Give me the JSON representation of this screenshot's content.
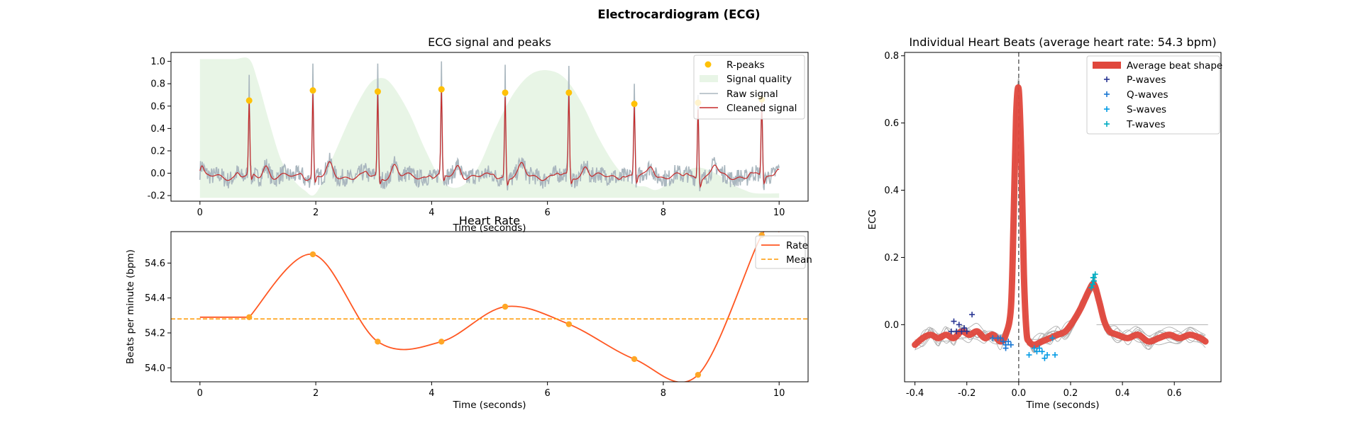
{
  "figure": {
    "title": "Electrocardiogram (ECG)"
  },
  "chart_data": [
    {
      "id": "ecg",
      "type": "line",
      "title": "ECG signal and peaks",
      "xlabel": "Time (seconds)",
      "ylabel": "",
      "xlim": [
        -0.5,
        10.5
      ],
      "ylim": [
        -0.25,
        1.08
      ],
      "xticks": [
        0,
        2,
        4,
        6,
        8,
        10
      ],
      "yticks": [
        -0.2,
        0.0,
        0.2,
        0.4,
        0.6,
        0.8,
        1.0
      ],
      "legend_position": "top-right",
      "colors": {
        "peaks": "#ffc107",
        "quality": "#e8f5e6",
        "raw": "#aab7bf",
        "cleaned": "#c62828"
      },
      "legend": [
        "R-peaks",
        "Signal quality",
        "Raw signal",
        "Cleaned signal"
      ],
      "r_peaks": {
        "x": [
          0.85,
          1.95,
          3.07,
          4.17,
          5.27,
          6.37,
          7.5,
          8.6,
          9.7
        ],
        "y": [
          0.65,
          0.74,
          0.73,
          0.75,
          0.72,
          0.72,
          0.62,
          0.63,
          0.66
        ]
      },
      "signal_quality": {
        "x": [
          0,
          0.3,
          0.6,
          0.85,
          1.0,
          1.2,
          1.4,
          1.6,
          1.8,
          2.0,
          2.3,
          2.6,
          2.9,
          3.1,
          3.3,
          3.6,
          3.9,
          4.2,
          4.5,
          4.8,
          5.1,
          5.4,
          5.7,
          6.0,
          6.3,
          6.6,
          6.9,
          7.2,
          7.5,
          7.7,
          7.85,
          8.0,
          8.3,
          8.6,
          8.9,
          9.2,
          9.4,
          9.6,
          10.0
        ],
        "y": [
          1.02,
          1.02,
          1.02,
          1.02,
          0.82,
          0.45,
          0.12,
          -0.05,
          -0.15,
          -0.18,
          0.15,
          0.5,
          0.78,
          0.85,
          0.8,
          0.55,
          0.2,
          -0.08,
          -0.12,
          0.05,
          0.4,
          0.7,
          0.88,
          0.92,
          0.85,
          0.62,
          0.3,
          0.05,
          -0.1,
          -0.12,
          -0.15,
          -0.12,
          0.0,
          0.05,
          0.0,
          -0.1,
          -0.15,
          -0.18,
          -0.18
        ]
      },
      "raw_signal": {
        "description_values": "noisy version of cleaned signal, range approx -0.22 to 1.05",
        "spike_peaks_y": [
          0.88,
          0.98,
          0.98,
          1.0,
          0.97,
          0.96,
          0.8,
          0.7,
          0.68
        ]
      }
    },
    {
      "id": "rate",
      "type": "line",
      "title": "Heart Rate",
      "xlabel": "Time (seconds)",
      "ylabel": "Beats per minute (bpm)",
      "xlim": [
        -0.5,
        10.5
      ],
      "ylim": [
        53.92,
        54.78
      ],
      "xticks": [
        0,
        2,
        4,
        6,
        8,
        10
      ],
      "yticks": [
        54.0,
        54.2,
        54.4,
        54.6
      ],
      "legend_position": "top-right",
      "colors": {
        "rate": "#ff5722",
        "mean": "#ff9800",
        "points": "#ffa726"
      },
      "legend": [
        "Rate",
        "Mean"
      ],
      "series": [
        {
          "name": "Rate",
          "x": [
            0,
            0.85,
            1.95,
            3.07,
            4.17,
            5.27,
            6.37,
            7.5,
            8.6,
            9.7,
            10.0
          ],
          "y": [
            54.29,
            54.29,
            54.65,
            54.15,
            54.15,
            54.35,
            54.25,
            54.05,
            53.96,
            54.76,
            54.78
          ]
        },
        {
          "name": "Mean",
          "value": 54.28
        }
      ],
      "points": {
        "x": [
          0.85,
          1.95,
          3.07,
          4.17,
          5.27,
          6.37,
          7.5,
          8.6,
          9.7
        ],
        "y": [
          54.29,
          54.65,
          54.15,
          54.15,
          54.35,
          54.25,
          54.05,
          53.96,
          54.76
        ]
      }
    },
    {
      "id": "beats",
      "type": "line",
      "title": "Individual Heart Beats (average heart rate: 54.3 bpm)",
      "xlabel": "Time (seconds)",
      "ylabel": "ECG",
      "xlim": [
        -0.44,
        0.78
      ],
      "ylim": [
        -0.17,
        0.81
      ],
      "xticks": [
        -0.4,
        -0.2,
        0.0,
        0.2,
        0.4,
        0.6
      ],
      "yticks": [
        0.0,
        0.2,
        0.4,
        0.6,
        0.8
      ],
      "legend_position": "top-right",
      "colors": {
        "average": "#e0473c",
        "individual": "#b0b0b0",
        "p": "#283593",
        "q": "#1976d2",
        "s": "#039be5",
        "t": "#00acc1",
        "zero_line": "#666666"
      },
      "legend": [
        "Average beat shape",
        "P-waves",
        "Q-waves",
        "S-waves",
        "T-waves"
      ],
      "average_beat": {
        "x": [
          -0.4,
          -0.37,
          -0.34,
          -0.31,
          -0.28,
          -0.25,
          -0.22,
          -0.19,
          -0.16,
          -0.13,
          -0.1,
          -0.07,
          -0.05,
          -0.03,
          -0.02,
          -0.01,
          0.0,
          0.01,
          0.02,
          0.03,
          0.04,
          0.06,
          0.09,
          0.12,
          0.15,
          0.18,
          0.21,
          0.24,
          0.27,
          0.29,
          0.31,
          0.33,
          0.35,
          0.38,
          0.42,
          0.46,
          0.5,
          0.54,
          0.58,
          0.62,
          0.66,
          0.7,
          0.72
        ],
        "y": [
          -0.06,
          -0.04,
          -0.03,
          -0.04,
          -0.03,
          -0.04,
          -0.02,
          -0.03,
          -0.02,
          -0.04,
          -0.03,
          -0.05,
          -0.03,
          0.05,
          0.3,
          0.62,
          0.7,
          0.5,
          0.15,
          -0.02,
          -0.05,
          -0.06,
          -0.05,
          -0.04,
          -0.03,
          -0.02,
          0.01,
          0.05,
          0.1,
          0.12,
          0.07,
          0.01,
          -0.02,
          -0.03,
          -0.04,
          -0.03,
          -0.05,
          -0.04,
          -0.03,
          -0.04,
          -0.03,
          -0.04,
          -0.05
        ]
      },
      "p_waves": {
        "x": [
          -0.25,
          -0.23,
          -0.21,
          -0.24,
          -0.2,
          -0.18,
          -0.22,
          -0.26
        ],
        "y": [
          0.01,
          0.0,
          -0.01,
          -0.02,
          -0.02,
          0.03,
          -0.02,
          -0.02
        ]
      },
      "q_waves": {
        "x": [
          -0.1,
          -0.08,
          -0.06,
          -0.05,
          -0.04,
          -0.03,
          -0.07,
          -0.05
        ],
        "y": [
          -0.04,
          -0.04,
          -0.05,
          -0.06,
          -0.05,
          -0.06,
          -0.04,
          -0.07
        ]
      },
      "s_waves": {
        "x": [
          0.04,
          0.06,
          0.07,
          0.09,
          0.1,
          0.11,
          0.13,
          0.14,
          0.08
        ],
        "y": [
          -0.09,
          -0.07,
          -0.08,
          -0.08,
          -0.1,
          -0.09,
          -0.04,
          -0.09,
          -0.07
        ]
      },
      "t_waves": {
        "x": [
          0.28,
          0.285,
          0.29,
          0.29,
          0.295,
          0.285,
          0.29,
          0.287
        ],
        "y": [
          0.11,
          0.12,
          0.13,
          0.14,
          0.15,
          0.12,
          0.13,
          0.14
        ]
      },
      "individual_beats_x_range": [
        -0.4,
        0.73
      ],
      "flat_segment_y": 0.0
    }
  ]
}
